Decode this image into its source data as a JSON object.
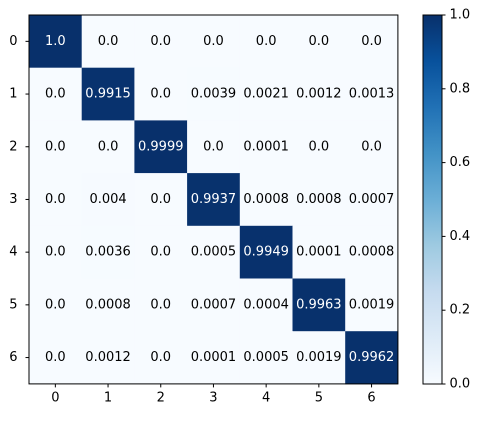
{
  "chart_data": {
    "type": "heatmap",
    "title": "",
    "xlabel": "",
    "ylabel": "",
    "x_labels": [
      "0",
      "1",
      "2",
      "3",
      "4",
      "5",
      "6"
    ],
    "y_labels": [
      "0",
      "1",
      "2",
      "3",
      "4",
      "5",
      "6"
    ],
    "values": [
      [
        1.0,
        0.0,
        0.0,
        0.0,
        0.0,
        0.0,
        0.0
      ],
      [
        0.0,
        0.9915,
        0.0,
        0.0039,
        0.0021,
        0.0012,
        0.0013
      ],
      [
        0.0,
        0.0,
        0.9999,
        0.0,
        0.0001,
        0.0,
        0.0
      ],
      [
        0.0,
        0.004,
        0.0,
        0.9937,
        0.0008,
        0.0008,
        0.0007
      ],
      [
        0.0,
        0.0036,
        0.0,
        0.0005,
        0.9949,
        0.0001,
        0.0008
      ],
      [
        0.0,
        0.0008,
        0.0,
        0.0007,
        0.0004,
        0.9963,
        0.0019
      ],
      [
        0.0,
        0.0012,
        0.0,
        0.0001,
        0.0005,
        0.0019,
        0.9962
      ]
    ],
    "cell_labels": [
      [
        "1.0",
        "0.0",
        "0.0",
        "0.0",
        "0.0",
        "0.0",
        "0.0"
      ],
      [
        "0.0",
        "0.9915",
        "0.0",
        "0.0039",
        "0.0021",
        "0.0012",
        "0.0013"
      ],
      [
        "0.0",
        "0.0",
        "0.9999",
        "0.0",
        "0.0001",
        "0.0",
        "0.0"
      ],
      [
        "0.0",
        "0.004",
        "0.0",
        "0.9937",
        "0.0008",
        "0.0008",
        "0.0007"
      ],
      [
        "0.0",
        "0.0036",
        "0.0",
        "0.0005",
        "0.9949",
        "0.0001",
        "0.0008"
      ],
      [
        "0.0",
        "0.0008",
        "0.0",
        "0.0007",
        "0.0004",
        "0.9963",
        "0.0019"
      ],
      [
        "0.0",
        "0.0012",
        "0.0",
        "0.0001",
        "0.0005",
        "0.0019",
        "0.9962"
      ]
    ],
    "colorbar": {
      "min": 0.0,
      "max": 1.0,
      "ticks": [
        0.0,
        0.2,
        0.4,
        0.6,
        0.8,
        1.0
      ],
      "tick_labels": [
        "0.0",
        "0.2",
        "0.4",
        "0.6",
        "0.8",
        "1.0"
      ]
    },
    "colormap": "Blues",
    "colors": {
      "low": "#f7fbff",
      "high": "#08306b",
      "text_dark": "#000000",
      "text_light": "#ffffff"
    },
    "grid": false,
    "legend": "colorbar-right"
  }
}
